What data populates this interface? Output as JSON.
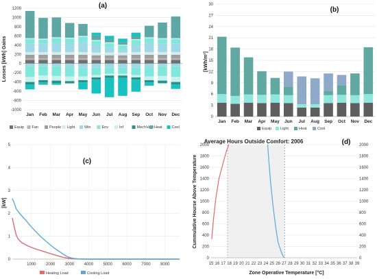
{
  "chart_data": [
    {
      "type": "bar",
      "stacked": true,
      "panel": "(a)",
      "ylabel": "Losses [kWh] Gains",
      "ylim": [
        -1000,
        1200
      ],
      "yticks": [
        -1000,
        -800,
        -600,
        -400,
        -200,
        0,
        200,
        400,
        600,
        800,
        1000,
        1200
      ],
      "grid": true,
      "legend_position": "bottom",
      "categories": [
        "Jan",
        "Feb",
        "Mar",
        "Apr",
        "May",
        "Jun",
        "Jul",
        "Aug",
        "Sep",
        "Oct",
        "Nov",
        "Dec"
      ],
      "series": [
        {
          "name": "Equip",
          "color": "#6f6f6f",
          "values": [
            80,
            80,
            80,
            80,
            80,
            80,
            80,
            80,
            80,
            80,
            80,
            80
          ]
        },
        {
          "name": "Fan",
          "color": "#b5b5b5",
          "values": [
            30,
            30,
            30,
            30,
            30,
            30,
            30,
            30,
            30,
            30,
            30,
            30
          ]
        },
        {
          "name": "People",
          "color": "#9e9e9e",
          "values": [
            80,
            80,
            80,
            80,
            80,
            70,
            70,
            70,
            80,
            80,
            80,
            80
          ]
        },
        {
          "name": "Light",
          "color": "#d6ece9",
          "values": [
            60,
            60,
            60,
            60,
            60,
            60,
            60,
            60,
            60,
            60,
            60,
            60
          ]
        },
        {
          "name": "Win",
          "color": "#9fd9e8",
          "values": [
            190,
            190,
            200,
            200,
            220,
            160,
            110,
            60,
            150,
            200,
            190,
            190
          ]
        },
        {
          "name": "Env",
          "color": "#7fe8da",
          "values": [
            90,
            80,
            100,
            90,
            110,
            90,
            90,
            90,
            110,
            100,
            90,
            90
          ]
        },
        {
          "name": "Inf",
          "color": "#c8f0ec",
          "values": [
            20,
            20,
            20,
            20,
            20,
            20,
            20,
            20,
            20,
            20,
            20,
            20
          ]
        },
        {
          "name": "MechVent",
          "color": "#2a8f86",
          "values": [
            0,
            0,
            0,
            0,
            0,
            0,
            0,
            0,
            0,
            0,
            0,
            0
          ]
        },
        {
          "name": "Heat",
          "color": "#5ea7a5",
          "values": [
            590,
            450,
            430,
            320,
            260,
            100,
            70,
            60,
            60,
            250,
            340,
            470
          ]
        },
        {
          "name": "Cool",
          "color": "#19c2c0",
          "values": [
            0,
            0,
            0,
            0,
            0,
            60,
            70,
            70,
            80,
            0,
            0,
            0
          ]
        }
      ],
      "series_neg": [
        {
          "name": "Win",
          "color": "#9fd9e8",
          "values": [
            -60,
            -60,
            -60,
            -80,
            -90,
            -90,
            -90,
            -90,
            -90,
            -80,
            -60,
            -60
          ]
        },
        {
          "name": "Env",
          "color": "#7fe8da",
          "values": [
            -230,
            -200,
            -210,
            -200,
            -190,
            -160,
            -130,
            -130,
            -160,
            -200,
            -210,
            -230
          ]
        },
        {
          "name": "Inf",
          "color": "#c8f0ec",
          "values": [
            -110,
            -100,
            -100,
            -100,
            -80,
            -50,
            -40,
            -40,
            -50,
            -80,
            -100,
            -110
          ]
        },
        {
          "name": "MechVent",
          "color": "#2a8f86",
          "values": [
            -50,
            -50,
            -50,
            -50,
            -50,
            -50,
            -50,
            -50,
            -50,
            -50,
            -50,
            -50
          ]
        },
        {
          "name": "Cool",
          "color": "#19c2c0",
          "values": [
            -110,
            -50,
            -40,
            0,
            -150,
            -300,
            -420,
            -390,
            -260,
            -70,
            -10,
            -100
          ]
        }
      ]
    },
    {
      "type": "bar",
      "stacked": true,
      "panel": "(b)",
      "ylabel": "[kWh/m²]",
      "ylim": [
        0,
        30
      ],
      "yticks": [
        0,
        3,
        6,
        9,
        12,
        15,
        18,
        21,
        24,
        27,
        30
      ],
      "grid": true,
      "legend_position": "bottom",
      "categories": [
        "Jan",
        "Feb",
        "Mar",
        "Apr",
        "May",
        "Jun",
        "Jul",
        "Aug",
        "Sep",
        "Oct",
        "Nov",
        "Dec"
      ],
      "series": [
        {
          "name": "Equip",
          "color": "#5e5e5e",
          "values": [
            3.7,
            3.4,
            3.7,
            3.6,
            3.7,
            3.6,
            2.4,
            2.4,
            3.6,
            3.7,
            3.6,
            3.7
          ]
        },
        {
          "name": "Light",
          "color": "#8fe6dc",
          "values": [
            2.3,
            2.1,
            2.2,
            2.2,
            2.2,
            2.1,
            0.9,
            0.9,
            2.1,
            2.1,
            2.1,
            2.3
          ]
        },
        {
          "name": "Heat",
          "color": "#61a8a0",
          "values": [
            15.3,
            12.9,
            9.9,
            6.3,
            4.4,
            2.3,
            0,
            0,
            1.2,
            2.5,
            5.8,
            12.5
          ]
        },
        {
          "name": "Cool",
          "color": "#8fa9c8",
          "values": [
            0,
            0,
            0,
            0,
            0,
            4.0,
            7.4,
            6.9,
            4.6,
            2.8,
            0,
            0
          ]
        }
      ]
    },
    {
      "type": "line",
      "panel": "(c)",
      "ylabel": "[kW]",
      "xlim": [
        0,
        8760
      ],
      "ylim": [
        0,
        5
      ],
      "xticks": [
        1000,
        2000,
        3000,
        4000,
        5000,
        6000,
        7000,
        8000
      ],
      "yticks": [
        0,
        1,
        2,
        3,
        4,
        5
      ],
      "grid": true,
      "legend_position": "bottom",
      "series": [
        {
          "name": "Heating Load",
          "color": "#e06a6e",
          "x": [
            0,
            100,
            200,
            300,
            500,
            800,
            1200,
            1600,
            2000,
            2400,
            2700,
            3000,
            3300,
            3600,
            8760
          ],
          "y": [
            1.8,
            1.4,
            1.05,
            0.88,
            0.72,
            0.58,
            0.45,
            0.34,
            0.24,
            0.14,
            0.07,
            0.03,
            0.01,
            0,
            0
          ]
        },
        {
          "name": "Cooling Load",
          "color": "#5aa9d6",
          "x": [
            0,
            100,
            200,
            400,
            700,
            1000,
            1400,
            1800,
            2200,
            2600,
            2900,
            3200,
            3500,
            3800,
            8760
          ],
          "y": [
            2.65,
            2.45,
            2.2,
            1.98,
            1.7,
            1.4,
            1.05,
            0.75,
            0.48,
            0.25,
            0.1,
            0.03,
            0.01,
            0,
            0
          ]
        }
      ]
    },
    {
      "type": "line",
      "panel": "(d)",
      "title": "Average Hours Outside Comfort: 2006",
      "xlabel": "Zone Operative Temperature [°C]",
      "ylabel": "Cummulative Hourse Above Temperature",
      "xlim": [
        15,
        39
      ],
      "ylim": [
        0,
        2000
      ],
      "xticks": [
        15,
        16,
        17,
        18,
        19,
        20,
        21,
        22,
        23,
        24,
        25,
        26,
        27,
        28,
        29,
        30,
        31,
        32,
        33,
        34,
        35,
        36,
        37,
        38,
        39
      ],
      "yticks": [
        0,
        200,
        400,
        600,
        800,
        1000,
        1200,
        1400,
        1600,
        1800,
        2000
      ],
      "comfort_band": [
        17.7,
        27.1
      ],
      "grid": true,
      "series": [
        {
          "color": "#e06a6e",
          "x": [
            15.1,
            15.4,
            15.8,
            16.3,
            16.9,
            17.5,
            17.9
          ],
          "y": [
            330,
            700,
            1070,
            1400,
            1650,
            1880,
            2000
          ]
        },
        {
          "color": "#5aa9d6",
          "x": [
            24.3,
            24.5,
            24.8,
            25.2,
            25.6,
            26.0,
            26.4,
            26.7,
            27.0
          ],
          "y": [
            2000,
            1700,
            1300,
            900,
            550,
            280,
            140,
            60,
            0
          ]
        }
      ]
    }
  ]
}
